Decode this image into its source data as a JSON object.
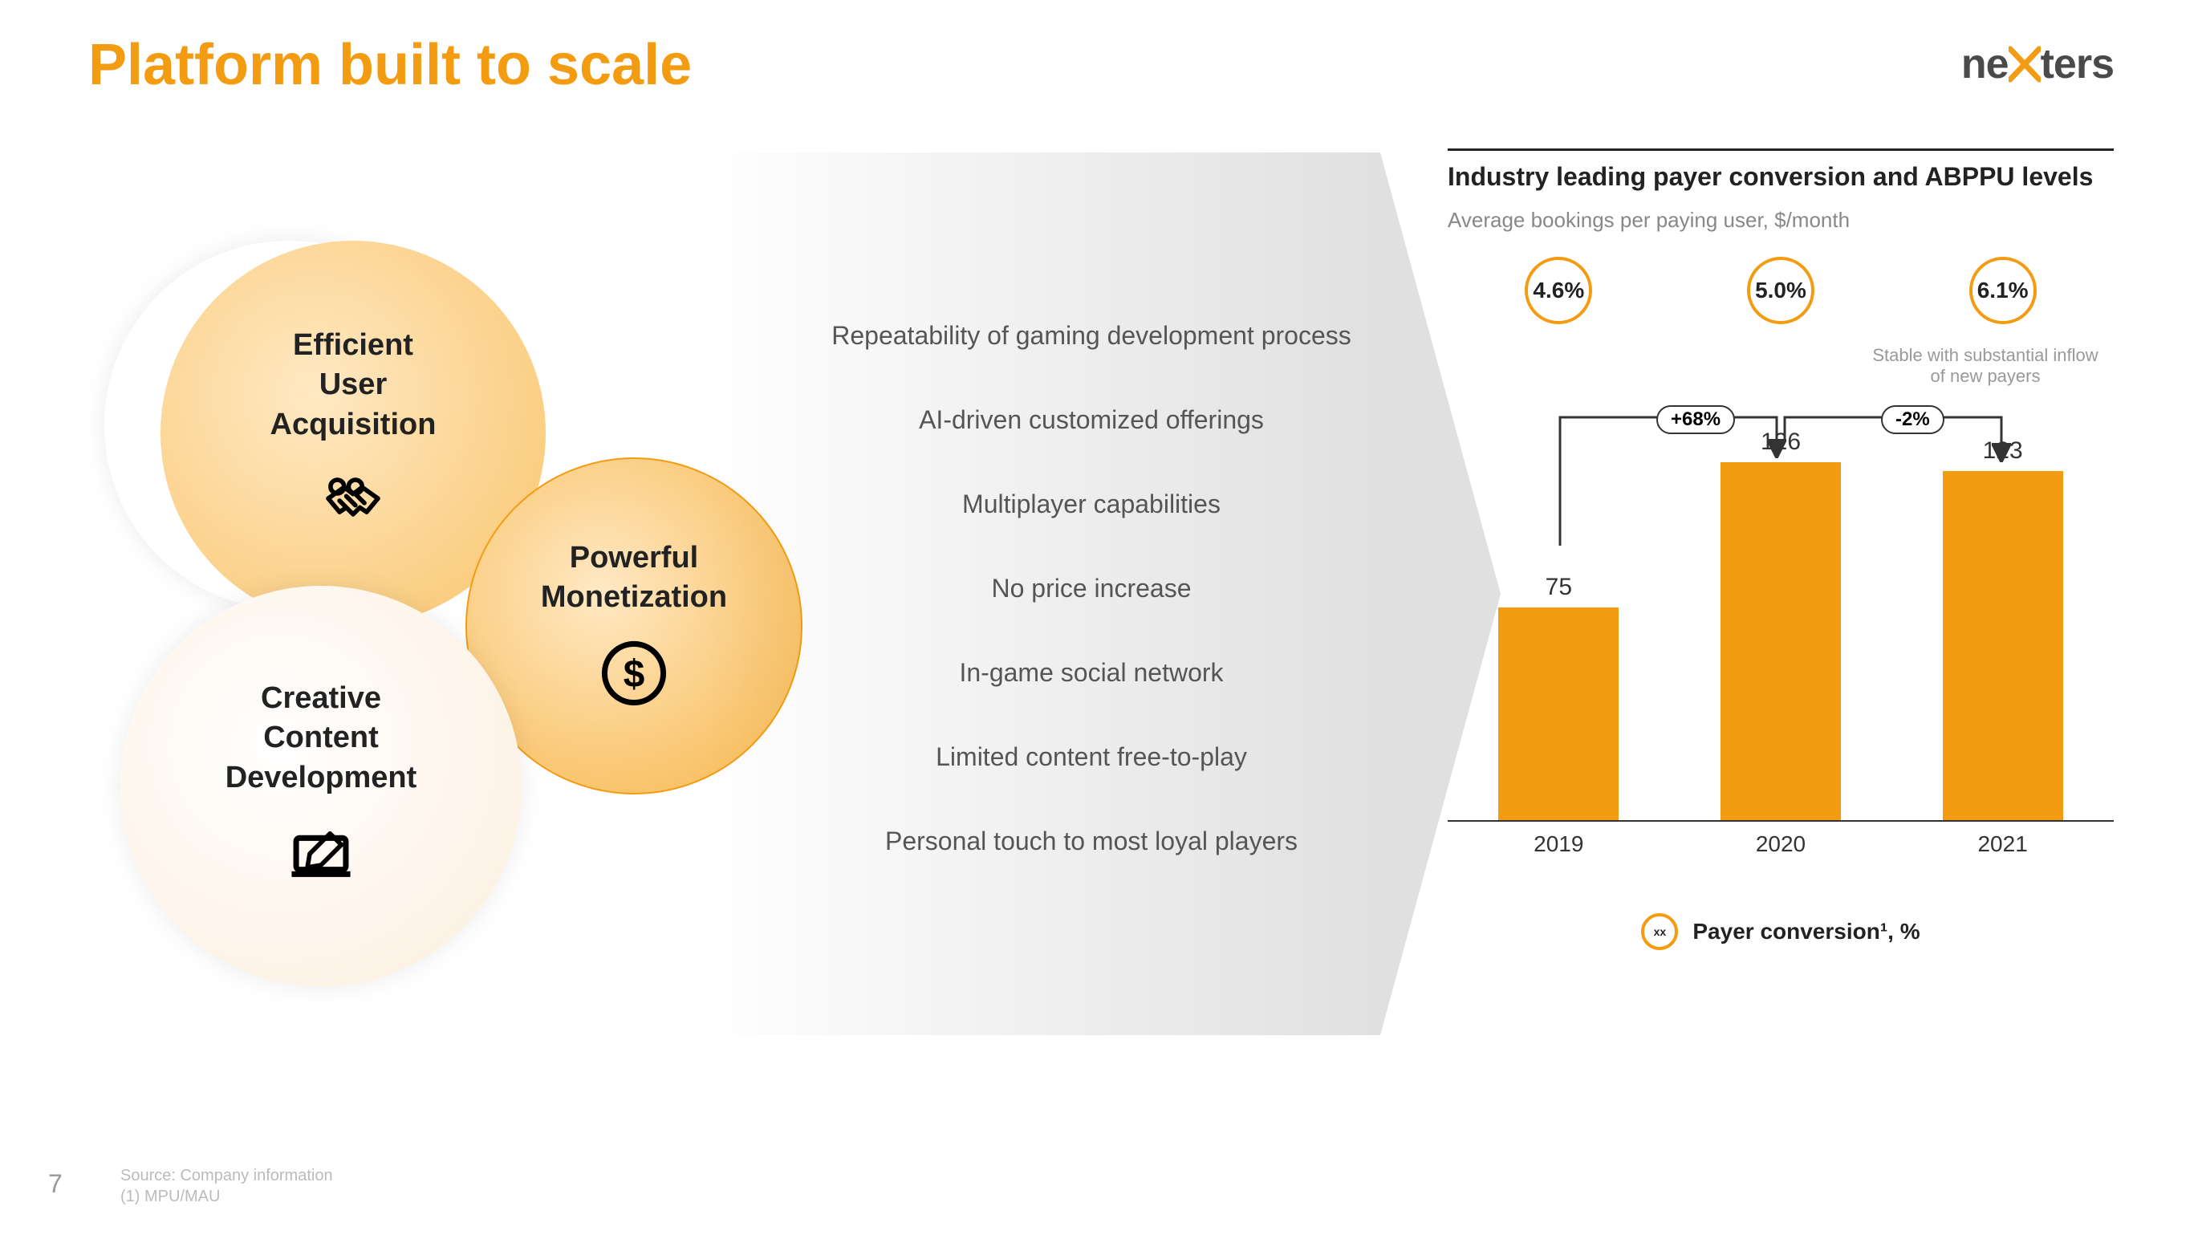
{
  "header": {
    "title": "Platform built to scale",
    "logo_left": "ne",
    "logo_x": "x",
    "logo_right": "ters"
  },
  "footer": {
    "page_number": "7",
    "source_line1": "Source: Company information",
    "source_line2": "(1) MPU/MAU"
  },
  "venn": {
    "ua": {
      "line1": "Efficient",
      "line2": "User",
      "line3": "Acquisition"
    },
    "pm": {
      "line1": "Powerful",
      "line2": "Monetization"
    },
    "cc": {
      "line1": "Creative",
      "line2": "Content",
      "line3": "Development"
    }
  },
  "bullets": [
    "Repeatability of gaming development process",
    "AI-driven customized offerings",
    "Multiplayer capabilities",
    "No price increase",
    "In-game social network",
    "Limited content free-to-play",
    "Personal touch to most loyal players"
  ],
  "chart": {
    "title": "Industry leading payer conversion and ABPPU levels",
    "subtitle": "Average bookings per paying user, $/month",
    "stable_note": "Stable with substantial inflow of new payers",
    "conversion": [
      "4.6%",
      "5.0%",
      "6.1%"
    ],
    "bars": [
      {
        "year": "2019",
        "value": 75,
        "label": "75"
      },
      {
        "year": "2020",
        "value": 126,
        "label": "126"
      },
      {
        "year": "2021",
        "value": 123,
        "label": "123"
      }
    ],
    "deltas": [
      "+68%",
      "-2%"
    ],
    "max": 130,
    "bar_color": "#f39c12",
    "legend_label": "Payer conversion¹, %",
    "legend_xx": "xx"
  }
}
